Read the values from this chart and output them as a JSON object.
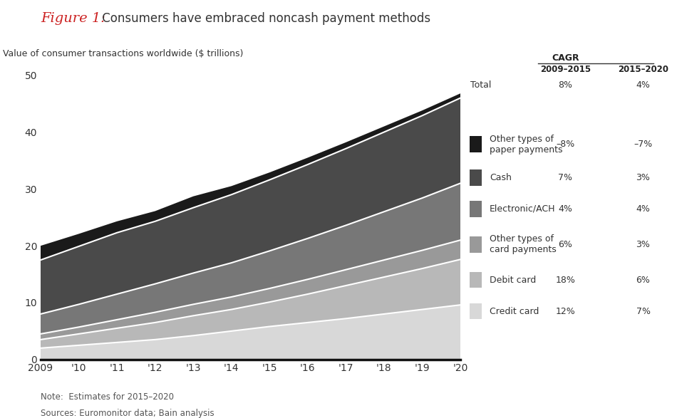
{
  "years": [
    2009,
    2010,
    2011,
    2012,
    2013,
    2014,
    2015,
    2016,
    2017,
    2018,
    2019,
    2020
  ],
  "series": {
    "credit_card": [
      2.0,
      2.5,
      3.0,
      3.5,
      4.2,
      5.0,
      5.8,
      6.5,
      7.2,
      8.0,
      8.8,
      9.6
    ],
    "debit_card": [
      1.5,
      2.0,
      2.5,
      3.0,
      3.5,
      3.8,
      4.3,
      5.0,
      5.8,
      6.5,
      7.2,
      8.0
    ],
    "other_card": [
      1.0,
      1.2,
      1.5,
      1.8,
      2.0,
      2.2,
      2.4,
      2.6,
      2.8,
      3.0,
      3.2,
      3.4
    ],
    "electronic_ach": [
      3.5,
      4.0,
      4.5,
      5.0,
      5.5,
      6.0,
      6.6,
      7.2,
      7.8,
      8.5,
      9.2,
      10.0
    ],
    "cash": [
      9.5,
      10.2,
      10.8,
      11.0,
      11.5,
      12.0,
      12.5,
      13.0,
      13.5,
      14.0,
      14.5,
      15.0
    ],
    "other_paper": [
      2.5,
      2.2,
      2.0,
      1.8,
      2.0,
      1.5,
      1.3,
      1.2,
      1.1,
      1.0,
      0.9,
      0.8
    ]
  },
  "colors": {
    "credit_card": "#d8d8d8",
    "debit_card": "#b8b8b8",
    "other_card": "#999999",
    "electronic_ach": "#777777",
    "cash": "#4a4a4a",
    "other_paper": "#1a1a1a"
  },
  "legend_labels": {
    "credit_card": "Credit card",
    "debit_card": "Debit card",
    "other_card": "Other types of\ncard payments",
    "electronic_ach": "Electronic/ACH",
    "cash": "Cash",
    "other_paper": "Other types of\npaper payments"
  },
  "cagr": {
    "total": [
      "8%",
      "4%"
    ],
    "other_paper": [
      "–8%",
      "–7%"
    ],
    "cash": [
      "7%",
      "3%"
    ],
    "electronic_ach": [
      "4%",
      "4%"
    ],
    "other_card": [
      "6%",
      "3%"
    ],
    "debit_card": [
      "18%",
      "6%"
    ],
    "credit_card": [
      "12%",
      "7%"
    ]
  },
  "title_italic": "Figure 1:",
  "title_rest": " Consumers have embraced noncash payment methods",
  "ylabel": "Value of consumer transactions worldwide ($ trillions)",
  "yticks": [
    0,
    10,
    20,
    30,
    40,
    50
  ],
  "note": "Note:  Estimates for 2015–2020",
  "source": "Sources: Euromonitor data; Bain analysis",
  "background_color": "#ffffff",
  "line_color": "#ffffff",
  "line_width": 1.2
}
